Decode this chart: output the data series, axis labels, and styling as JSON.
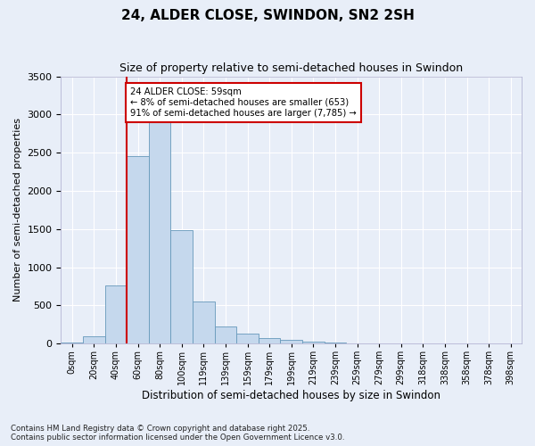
{
  "title": "24, ALDER CLOSE, SWINDON, SN2 2SH",
  "subtitle": "Size of property relative to semi-detached houses in Swindon",
  "xlabel": "Distribution of semi-detached houses by size in Swindon",
  "ylabel": "Number of semi-detached properties",
  "annotation_line1": "24 ALDER CLOSE: 59sqm",
  "annotation_line2": "← 8% of semi-detached houses are smaller (653)",
  "annotation_line3": "91% of semi-detached houses are larger (7,785) →",
  "footer_line1": "Contains HM Land Registry data © Crown copyright and database right 2025.",
  "footer_line2": "Contains public sector information licensed under the Open Government Licence v3.0.",
  "bar_color": "#c5d8ed",
  "bar_edge_color": "#6699bb",
  "vline_color": "#cc0000",
  "annotation_box_edge_color": "#cc0000",
  "background_color": "#e8eef8",
  "grid_color": "#ffffff",
  "categories": [
    "0sqm",
    "20sqm",
    "40sqm",
    "60sqm",
    "80sqm",
    "100sqm",
    "119sqm",
    "139sqm",
    "159sqm",
    "179sqm",
    "199sqm",
    "219sqm",
    "239sqm",
    "259sqm",
    "279sqm",
    "299sqm",
    "318sqm",
    "338sqm",
    "358sqm",
    "378sqm",
    "398sqm"
  ],
  "values": [
    10,
    95,
    760,
    2450,
    2950,
    1490,
    545,
    220,
    130,
    70,
    48,
    22,
    10,
    6,
    4,
    3,
    2,
    1,
    1,
    1,
    0
  ],
  "vline_index": 3.0,
  "ylim": [
    0,
    3500
  ],
  "yticks": [
    0,
    500,
    1000,
    1500,
    2000,
    2500,
    3000,
    3500
  ]
}
